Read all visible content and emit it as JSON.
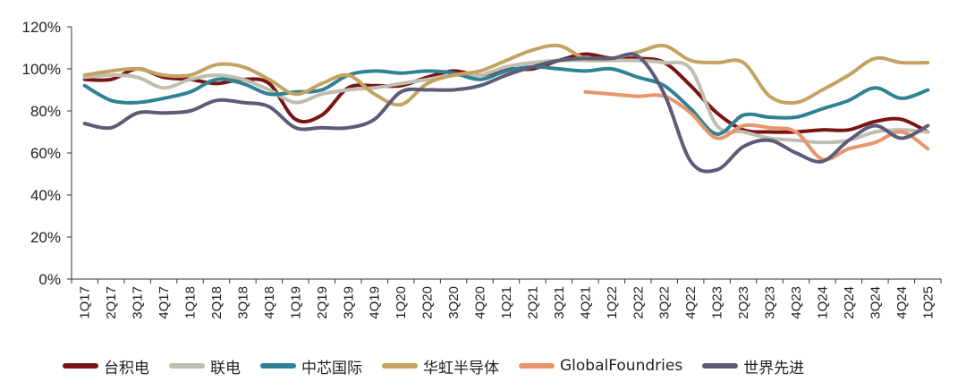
{
  "chart_data": {
    "type": "line",
    "categories": [
      "1Q17",
      "2Q17",
      "3Q17",
      "4Q17",
      "1Q18",
      "2Q18",
      "3Q18",
      "4Q18",
      "1Q19",
      "2Q19",
      "3Q19",
      "4Q19",
      "1Q20",
      "2Q20",
      "3Q20",
      "4Q20",
      "1Q21",
      "2Q21",
      "3Q21",
      "4Q21",
      "1Q22",
      "2Q22",
      "3Q22",
      "4Q22",
      "1Q23",
      "2Q23",
      "3Q23",
      "4Q23",
      "1Q24",
      "2Q24",
      "3Q24",
      "4Q24",
      "1Q25"
    ],
    "ylim": [
      0,
      120
    ],
    "yticks": [
      0,
      20,
      40,
      60,
      80,
      100,
      120
    ],
    "ytick_labels": [
      "0%",
      "20%",
      "40%",
      "60%",
      "80%",
      "100%",
      "120%"
    ],
    "grid": false,
    "legend_position": "bottom",
    "series": [
      {
        "name": "台积电",
        "color": "#7a1414",
        "values": [
          95,
          95,
          100,
          96,
          95,
          93,
          95,
          93,
          76,
          78,
          91,
          92,
          92,
          96,
          99,
          97,
          100,
          100,
          104,
          107,
          105,
          105,
          103,
          92,
          79,
          71,
          70,
          70,
          71,
          71,
          75,
          76,
          70
        ]
      },
      {
        "name": "联电",
        "color": "#c0bdb1",
        "values": [
          96,
          97,
          96,
          91,
          95,
          97,
          95,
          90,
          84,
          88,
          90,
          91,
          93,
          95,
          97,
          97,
          101,
          103,
          104,
          104,
          104,
          104,
          103,
          100,
          73,
          70,
          67,
          66,
          65,
          66,
          70,
          71,
          70
        ]
      },
      {
        "name": "中芯国际",
        "color": "#2e8294",
        "values": [
          92,
          85,
          84,
          86,
          89,
          95,
          93,
          88,
          89,
          90,
          97,
          99,
          98,
          99,
          98,
          95,
          99,
          101,
          100,
          99,
          100,
          96,
          92,
          81,
          69,
          78,
          77,
          77,
          81,
          85,
          91,
          86,
          90
        ]
      },
      {
        "name": "华虹半导体",
        "color": "#c4a362",
        "values": [
          97,
          99,
          100,
          97,
          97,
          102,
          101,
          95,
          88,
          93,
          97,
          88,
          83,
          93,
          97,
          99,
          104,
          109,
          111,
          105,
          105,
          108,
          111,
          104,
          103,
          103,
          87,
          84,
          90,
          97,
          105,
          103,
          103
        ]
      },
      {
        "name": "GlobalFoundries",
        "color": "#e8956b",
        "values": [
          null,
          null,
          null,
          null,
          null,
          null,
          null,
          null,
          null,
          null,
          null,
          null,
          null,
          null,
          null,
          null,
          null,
          null,
          null,
          89,
          88,
          87,
          87,
          79,
          67,
          73,
          72,
          70,
          57,
          62,
          65,
          70,
          62
        ]
      },
      {
        "name": "世界先进",
        "color": "#5c5c78",
        "values": [
          74,
          72,
          79,
          79,
          80,
          85,
          84,
          82,
          72,
          72,
          72,
          76,
          89,
          90,
          90,
          92,
          97,
          101,
          104,
          105,
          105,
          106,
          88,
          56,
          52,
          63,
          66,
          60,
          56,
          66,
          73,
          67,
          73
        ]
      }
    ]
  }
}
